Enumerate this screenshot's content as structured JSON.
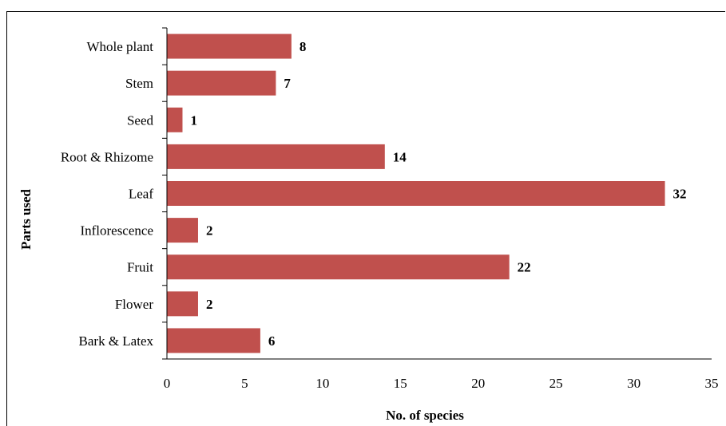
{
  "chart_data": {
    "type": "bar",
    "orientation": "horizontal",
    "categories": [
      "Bark & Latex",
      "Flower",
      "Fruit",
      "Inflorescence",
      "Leaf",
      "Root & Rhizome",
      "Seed",
      "Stem",
      "Whole plant"
    ],
    "values": [
      6,
      2,
      22,
      2,
      32,
      14,
      1,
      7,
      8
    ],
    "data_labels": [
      "6",
      "2",
      "22",
      "2",
      "32",
      "14",
      "1",
      "7",
      "8"
    ],
    "xlabel": "No. of species",
    "ylabel": "Parts used",
    "xlim": [
      0,
      35
    ],
    "xticks": [
      "0",
      "5",
      "10",
      "15",
      "20",
      "25",
      "30",
      "35"
    ],
    "grid": false,
    "bar_color": "#c0504d"
  }
}
